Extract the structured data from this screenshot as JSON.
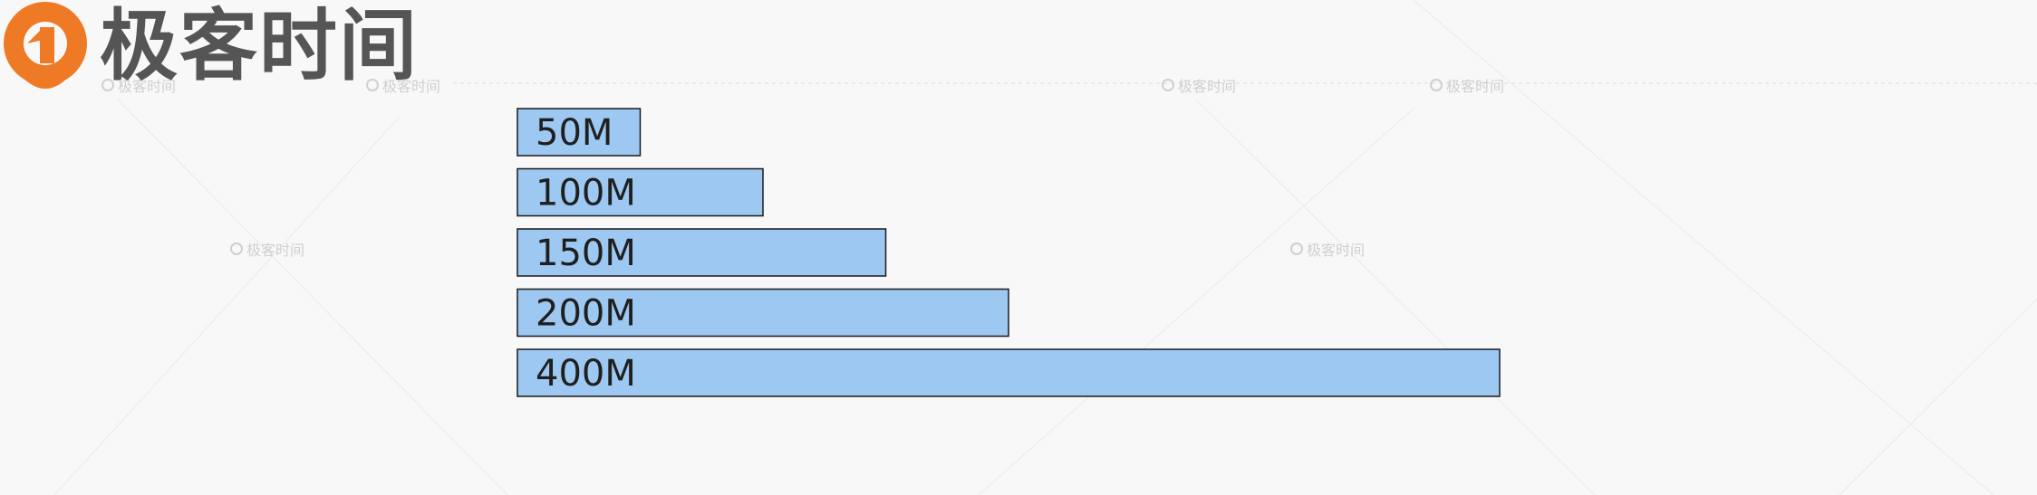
{
  "brand": {
    "name": "极客时间",
    "watermark": "极客时间"
  },
  "colors": {
    "bar_fill": "#9dc8f1",
    "bar_stroke": "#1a1a1a",
    "label": "#1f1f1f",
    "logo_orange": "#ef7a25",
    "logo_text": "#555555"
  },
  "chart_data": {
    "type": "bar",
    "orientation": "horizontal",
    "categories": [
      "50M",
      "100M",
      "150M",
      "200M",
      "400M"
    ],
    "values": [
      50,
      100,
      150,
      200,
      400
    ],
    "title": "",
    "xlabel": "",
    "ylabel": "",
    "grid": false,
    "legend": "none"
  }
}
